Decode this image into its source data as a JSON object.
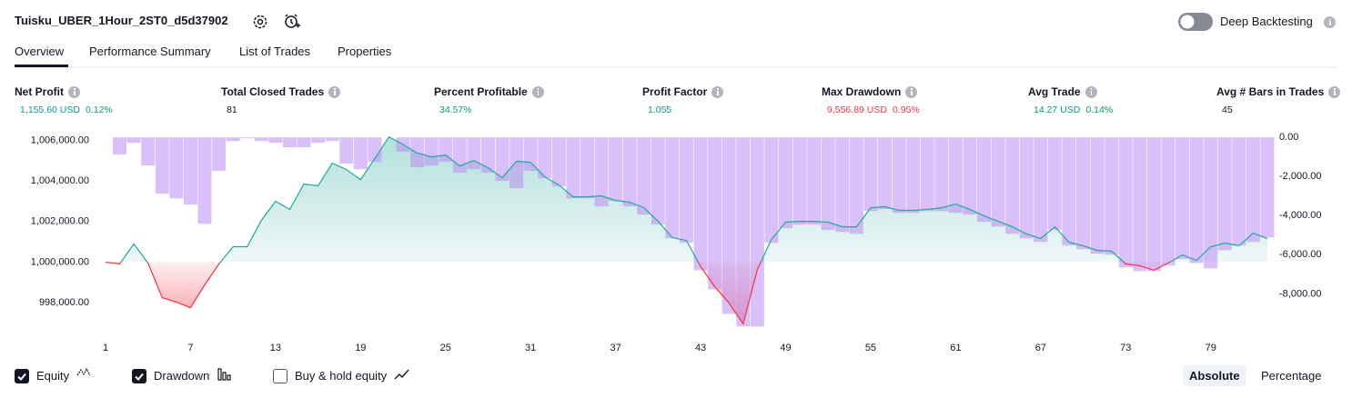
{
  "header": {
    "title": "Tuisku_UBER_1Hour_2ST0_d5d37902",
    "toggle_label": "Deep Backtesting"
  },
  "tabs": [
    "Overview",
    "Performance Summary",
    "List of Trades",
    "Properties"
  ],
  "metrics": [
    {
      "label": "Net Profit",
      "value": "1,155.60 USD",
      "percent": "0.12%",
      "color": "#089981"
    },
    {
      "label": "Total Closed Trades",
      "value": "81",
      "color": "#131722"
    },
    {
      "label": "Percent Profitable",
      "value": "34.57%",
      "color": "#089981"
    },
    {
      "label": "Profit Factor",
      "value": "1.055",
      "color": "#089981"
    },
    {
      "label": "Max Drawdown",
      "value": "9,556.89 USD",
      "percent": "0.95%",
      "color": "#f23645"
    },
    {
      "label": "Avg Trade",
      "value": "14.27 USD",
      "percent": "0.14%",
      "color": "#089981"
    },
    {
      "label": "Avg # Bars in Trades",
      "value": "45",
      "color": "#131722"
    }
  ],
  "chart_data": {
    "type": "line",
    "x": [
      1,
      2,
      3,
      4,
      5,
      6,
      7,
      8,
      9,
      10,
      11,
      12,
      13,
      14,
      15,
      16,
      17,
      18,
      19,
      20,
      21,
      22,
      23,
      24,
      25,
      26,
      27,
      28,
      29,
      30,
      31,
      32,
      33,
      34,
      35,
      36,
      37,
      38,
      39,
      40,
      41,
      42,
      43,
      44,
      45,
      46,
      47,
      48,
      49,
      50,
      51,
      52,
      53,
      54,
      55,
      56,
      57,
      58,
      59,
      60,
      61,
      62,
      63,
      64,
      65,
      66,
      67,
      68,
      69,
      70,
      71,
      72,
      73,
      74,
      75,
      76,
      77,
      78,
      79,
      80,
      81,
      82,
      83
    ],
    "xlim": [
      1,
      83
    ],
    "xticks": [
      1,
      7,
      13,
      19,
      25,
      31,
      37,
      43,
      49,
      55,
      61,
      67,
      73,
      79
    ],
    "series": [
      {
        "name": "Equity",
        "color": "#26a69a",
        "negative_color": "#f23645",
        "values": [
          1000000,
          999910,
          1000900,
          999950,
          998250,
          998030,
          997760,
          998880,
          999910,
          1000760,
          1000760,
          1002060,
          1003000,
          1002600,
          1003850,
          1003760,
          1004880,
          1004560,
          1004070,
          1005100,
          1006170,
          1005800,
          1005370,
          1005190,
          1005280,
          1004740,
          1005010,
          1004650,
          1004160,
          1004970,
          1004920,
          1004200,
          1003800,
          1003220,
          1003220,
          1003270,
          1003040,
          1002950,
          1002680,
          1002010,
          1001210,
          1001070,
          999780,
          998790,
          997990,
          996960,
          999640,
          1001120,
          1001970,
          1002010,
          1002010,
          1001970,
          1001740,
          1001740,
          1002680,
          1002730,
          1002550,
          1002550,
          1002600,
          1002680,
          1002860,
          1002600,
          1002280,
          1002010,
          1001740,
          1001390,
          1001160,
          1001740,
          1000980,
          1000810,
          1000580,
          1000540,
          999910,
          999820,
          999600,
          999960,
          1000360,
          1000090,
          1000760,
          1000940,
          1000810,
          1001430,
          1001160
        ]
      },
      {
        "name": "Drawdown",
        "type": "bar",
        "axis": "y2",
        "color": "#b98cf2",
        "values": [
          0,
          -880,
          -280,
          -1440,
          -2880,
          -3120,
          -3440,
          -4420,
          -1720,
          -190,
          -50,
          -190,
          -280,
          -510,
          -510,
          -280,
          -190,
          -1350,
          -1630,
          -1260,
          0,
          -740,
          -1530,
          -1440,
          -1260,
          -1810,
          -1630,
          -1810,
          -2230,
          -2600,
          -1720,
          -2090,
          -2510,
          -3120,
          -3120,
          -3530,
          -3260,
          -3530,
          -3950,
          -4460,
          -5160,
          -5390,
          -6790,
          -7770,
          -9020,
          -9670,
          -9670,
          -5390,
          -4650,
          -4460,
          -4460,
          -4740,
          -4840,
          -4930,
          -3770,
          -3670,
          -3860,
          -3860,
          -3770,
          -3770,
          -3860,
          -3950,
          -4320,
          -4560,
          -4930,
          -5160,
          -5350,
          -4740,
          -5530,
          -5720,
          -5950,
          -6000,
          -6650,
          -6840,
          -6840,
          -6560,
          -6230,
          -6420,
          -6700,
          -5770,
          -5530,
          -5350,
          -5120
        ]
      }
    ],
    "ylim": [
      996800,
      1006200
    ],
    "yticks": [
      {
        "value": 998000,
        "label": "998,000.00"
      },
      {
        "value": 1000000,
        "label": "1,000,000.00"
      },
      {
        "value": 1002000,
        "label": "1,002,000.00"
      },
      {
        "value": 1004000,
        "label": "1,004,000.00"
      },
      {
        "value": 1006000,
        "label": "1,006,000.00"
      }
    ],
    "y2lim": [
      -9700,
      50
    ],
    "y2ticks": [
      {
        "value": 0,
        "label": "0.00"
      },
      {
        "value": -2000,
        "label": "-2,000.00"
      },
      {
        "value": -4000,
        "label": "-4,000.00"
      },
      {
        "value": -6000,
        "label": "-6,000.00"
      },
      {
        "value": -8000,
        "label": "-8,000.00"
      }
    ]
  },
  "controls": {
    "extra_checkbox": "Buy & hold equity",
    "modes": [
      "Absolute",
      "Percentage"
    ],
    "active_mode": 0
  }
}
